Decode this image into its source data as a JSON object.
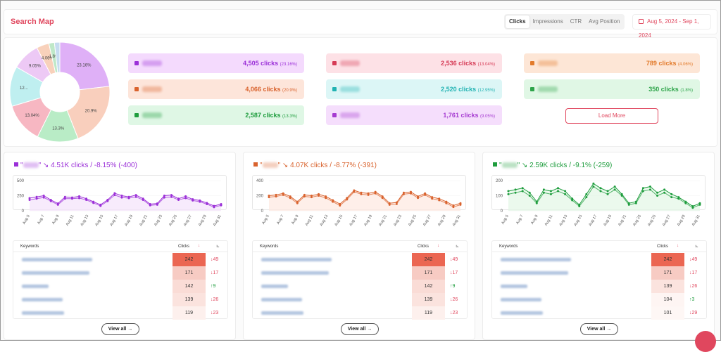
{
  "header": {
    "title": "Search Map",
    "tabs": [
      "Clicks",
      "Impressions",
      "CTR",
      "Avg Position"
    ],
    "active_tab": "Clicks",
    "date_range": "Aug 5, 2024 - Sep 1, 2024"
  },
  "summary": {
    "pie_slices": [
      {
        "label": "23.16%",
        "percent": 23.16,
        "color": "#dfb0f7"
      },
      {
        "label": "20.9%",
        "percent": 20.9,
        "color": "#f9cfbd"
      },
      {
        "label": "13.3%",
        "percent": 13.3,
        "color": "#b9ecc6"
      },
      {
        "label": "13.04%",
        "percent": 13.04,
        "color": "#f7b7c2"
      },
      {
        "label": "12...",
        "percent": 12.95,
        "color": "#bfeff0"
      },
      {
        "label": "9.05%",
        "percent": 9.05,
        "color": "#edc9f5"
      },
      {
        "label": "4.06%",
        "percent": 4.06,
        "color": "#f8d1bb"
      },
      {
        "label": "1.8%",
        "percent": 1.8,
        "color": "#bfe8c8"
      },
      {
        "label": "",
        "percent": 1.74,
        "color": "#c6dcf0"
      }
    ],
    "items": [
      {
        "value": "4,505 clicks",
        "pct": "(23.16%)",
        "color": "#9b30d8",
        "bg": "#f4dafd"
      },
      {
        "value": "4,066 clicks",
        "pct": "(20.9%)",
        "color": "#d9632e",
        "bg": "#fde5da"
      },
      {
        "value": "2,587 clicks",
        "pct": "(13.3%)",
        "color": "#1f9d3e",
        "bg": "#dff7e5"
      },
      {
        "value": "2,536 clicks",
        "pct": "(13.04%)",
        "color": "#d63b56",
        "bg": "#fde1e6"
      },
      {
        "value": "2,520 clicks",
        "pct": "(12.95%)",
        "color": "#22b3b3",
        "bg": "#dcf6f6"
      },
      {
        "value": "1,761 clicks",
        "pct": "(9.05%)",
        "color": "#a63cd1",
        "bg": "#f5defc"
      },
      {
        "value": "789 clicks",
        "pct": "(4.06%)",
        "color": "#e27a2a",
        "bg": "#fde6d6"
      },
      {
        "value": "350 clicks",
        "pct": "(1.8%)",
        "color": "#2ea44a",
        "bg": "#e0f7e5"
      }
    ],
    "load_more": "Load More"
  },
  "cards": [
    {
      "color": "#9b30d8",
      "fill": "#f3e2fb",
      "quote_open": "\"",
      "quote_close": "\"",
      "trend": "4.51K clicks / -8.15% (-400)",
      "y_ticks": [
        "500",
        "250",
        "0"
      ],
      "y_max": 500,
      "x_labels": [
        "Aug 5",
        "Aug 7",
        "Aug 9",
        "Aug 11",
        "Aug 13",
        "Aug 15",
        "Aug 17",
        "Aug 19",
        "Aug 21",
        "Aug 23",
        "Aug 25",
        "Aug 27",
        "Aug 29",
        "Aug 31"
      ],
      "series_a": [
        210,
        230,
        250,
        180,
        120,
        230,
        220,
        240,
        200,
        150,
        100,
        180,
        290,
        250,
        230,
        260,
        200,
        110,
        120,
        250,
        260,
        200,
        240,
        190,
        170,
        130,
        80,
        110
      ],
      "series_b": [
        180,
        200,
        220,
        160,
        100,
        200,
        200,
        210,
        180,
        130,
        80,
        160,
        260,
        220,
        210,
        230,
        180,
        90,
        100,
        220,
        230,
        180,
        210,
        170,
        150,
        110,
        60,
        90
      ],
      "table": {
        "col_keywords": "Keywords",
        "col_clicks": "Clicks",
        "sort_icon": "↓",
        "chart_icon": "⊾",
        "rows": [
          {
            "clicks": "242",
            "delta": "↓49",
            "shade": "#eb6652",
            "dir": "down"
          },
          {
            "clicks": "171",
            "delta": "↓17",
            "shade": "#f7cbc3",
            "dir": "down"
          },
          {
            "clicks": "142",
            "delta": "↑9",
            "shade": "#fadcd6",
            "dir": "up"
          },
          {
            "clicks": "139",
            "delta": "↓26",
            "shade": "#fbe3de",
            "dir": "down"
          },
          {
            "clicks": "119",
            "delta": "↓23",
            "shade": "#fdf0ed",
            "dir": "down"
          }
        ]
      },
      "view_all": "View all →"
    },
    {
      "color": "#d9632e",
      "fill": "#fde8df",
      "quote_open": "\"",
      "quote_close": "\"",
      "trend": "4.07K clicks / -8.77% (-391)",
      "y_ticks": [
        "400",
        "200",
        "0"
      ],
      "y_max": 400,
      "x_labels": [
        "Aug 5",
        "Aug 7",
        "Aug 9",
        "Aug 11",
        "Aug 13",
        "Aug 15",
        "Aug 17",
        "Aug 19",
        "Aug 21",
        "Aug 23",
        "Aug 25",
        "Aug 27",
        "Aug 29",
        "Aug 31"
      ],
      "series_a": [
        200,
        210,
        230,
        190,
        120,
        210,
        200,
        220,
        190,
        140,
        90,
        170,
        270,
        240,
        230,
        250,
        190,
        100,
        110,
        240,
        250,
        190,
        230,
        180,
        160,
        120,
        70,
        100
      ],
      "series_b": [
        180,
        190,
        210,
        170,
        100,
        190,
        180,
        200,
        170,
        120,
        70,
        150,
        250,
        220,
        210,
        230,
        170,
        80,
        90,
        220,
        230,
        170,
        210,
        160,
        140,
        100,
        50,
        80
      ],
      "table": {
        "col_keywords": "Keywords",
        "col_clicks": "Clicks",
        "sort_icon": "↓",
        "chart_icon": "⊾",
        "rows": [
          {
            "clicks": "242",
            "delta": "↓49",
            "shade": "#eb6652",
            "dir": "down"
          },
          {
            "clicks": "171",
            "delta": "↓17",
            "shade": "#f7cbc3",
            "dir": "down"
          },
          {
            "clicks": "142",
            "delta": "↑9",
            "shade": "#fadcd6",
            "dir": "up"
          },
          {
            "clicks": "139",
            "delta": "↓26",
            "shade": "#fbe3de",
            "dir": "down"
          },
          {
            "clicks": "119",
            "delta": "↓23",
            "shade": "#fdf0ed",
            "dir": "down"
          }
        ]
      },
      "view_all": "View all →"
    },
    {
      "color": "#1f9d3e",
      "fill": "#e2f6e6",
      "quote_open": "\"",
      "quote_close": "\"",
      "trend": "2.59K clicks / -9.1% (-259)",
      "y_ticks": [
        "200",
        "100",
        "0"
      ],
      "y_max": 200,
      "x_labels": [
        "Aug 5",
        "Aug 7",
        "Aug 9",
        "Aug 11",
        "Aug 13",
        "Aug 15",
        "Aug 17",
        "Aug 19",
        "Aug 21",
        "Aug 23",
        "Aug 25",
        "Aug 27",
        "Aug 29",
        "Aug 31"
      ],
      "series_a": [
        130,
        140,
        150,
        120,
        60,
        140,
        130,
        150,
        130,
        80,
        40,
        110,
        180,
        150,
        130,
        160,
        110,
        50,
        60,
        150,
        160,
        120,
        140,
        110,
        90,
        60,
        30,
        50
      ],
      "series_b": [
        110,
        120,
        130,
        100,
        50,
        120,
        110,
        130,
        110,
        70,
        30,
        90,
        160,
        130,
        110,
        140,
        100,
        40,
        50,
        130,
        140,
        100,
        120,
        90,
        80,
        50,
        20,
        40
      ],
      "table": {
        "col_keywords": "Keywords",
        "col_clicks": "Clicks",
        "sort_icon": "↓",
        "chart_icon": "⊾",
        "rows": [
          {
            "clicks": "242",
            "delta": "↓49",
            "shade": "#eb6652",
            "dir": "down"
          },
          {
            "clicks": "171",
            "delta": "↓17",
            "shade": "#f7cbc3",
            "dir": "down"
          },
          {
            "clicks": "139",
            "delta": "↓26",
            "shade": "#fbe3de",
            "dir": "down"
          },
          {
            "clicks": "104",
            "delta": "↑3",
            "shade": "#fef5f3",
            "dir": "up"
          },
          {
            "clicks": "101",
            "delta": "↓29",
            "shade": "#fef7f5",
            "dir": "down"
          }
        ]
      },
      "view_all": "View all →"
    }
  ]
}
